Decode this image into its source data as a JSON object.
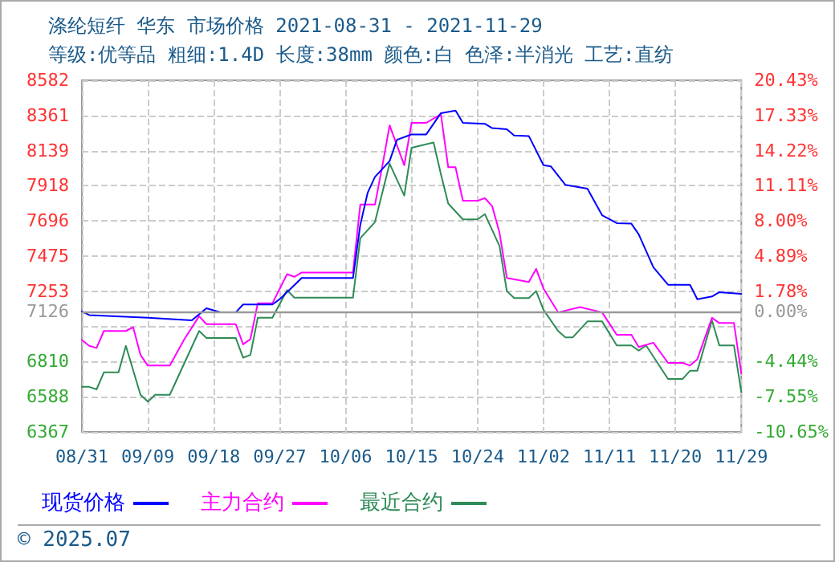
{
  "chart_data": {
    "type": "line",
    "title": "涤纶短纤 华东 市场价格 2021-08-31 - 2021-11-29",
    "subtitle": "等级:优等品 粗细:1.4D 长度:38mm 颜色:白 色泽:半消光 工艺:直纺",
    "annotations": [
      "© 2025.07"
    ],
    "xlim": [
      "2021-08-31",
      "2021-11-29"
    ],
    "xticks": [
      {
        "value": "2021-08-31",
        "label": "08/31"
      },
      {
        "value": "2021-09-09",
        "label": "09/09"
      },
      {
        "value": "2021-09-18",
        "label": "09/18"
      },
      {
        "value": "2021-09-27",
        "label": "09/27"
      },
      {
        "value": "2021-10-06",
        "label": "10/06"
      },
      {
        "value": "2021-10-15",
        "label": "10/15"
      },
      {
        "value": "2021-10-24",
        "label": "10/24"
      },
      {
        "value": "2021-11-02",
        "label": "11/02"
      },
      {
        "value": "2021-11-11",
        "label": "11/11"
      },
      {
        "value": "2021-11-20",
        "label": "11/20"
      },
      {
        "value": "2021-11-29",
        "label": "11/29"
      }
    ],
    "ylim": [
      6367,
      8582
    ],
    "yticks": [
      6367,
      6588,
      6810,
      {
        "value": 7031,
        "label": null
      },
      7126,
      7253,
      7475,
      7696,
      7918,
      8139,
      8361,
      8582
    ],
    "y2lim": [
      -10.65,
      20.43
    ],
    "y2ticks": [
      {
        "value": -10.65,
        "label": "-10.65%"
      },
      {
        "value": -7.55,
        "label": "-7.55%"
      },
      {
        "value": -4.44,
        "label": "-4.44%"
      },
      {
        "value": -1.33,
        "label": null
      },
      {
        "value": 0,
        "label": "0.00%"
      },
      {
        "value": 1.78,
        "label": "1.78%"
      },
      {
        "value": 4.89,
        "label": "4.89%"
      },
      {
        "value": 8,
        "label": "8.00%"
      },
      {
        "value": 11.11,
        "label": "11.11%"
      },
      {
        "value": 14.22,
        "label": "14.22%"
      },
      {
        "value": 17.33,
        "label": "17.33%"
      },
      {
        "value": 20.43,
        "label": "20.43%"
      }
    ],
    "ref_lines": [
      {
        "axis": "y",
        "value": 7126,
        "color": "#999999",
        "line_style": "solid"
      }
    ],
    "grid": true,
    "legend": "bottom",
    "marker": "none",
    "line_style": "solid",
    "series": [
      {
        "name": "现货价格",
        "color": "#0000ff",
        "x": [
          "2021-08-31",
          "2021-09-01",
          "2021-09-09",
          "2021-09-15",
          "2021-09-17",
          "2021-09-19",
          "2021-09-21",
          "2021-09-22",
          "2021-09-26",
          "2021-09-27",
          "2021-09-30",
          "2021-10-07",
          "2021-10-08",
          "2021-10-09",
          "2021-10-10",
          "2021-10-12",
          "2021-10-13",
          "2021-10-15",
          "2021-10-17",
          "2021-10-19",
          "2021-10-21",
          "2021-10-22",
          "2021-10-25",
          "2021-10-26",
          "2021-10-28",
          "2021-10-29",
          "2021-10-31",
          "2021-11-02",
          "2021-11-03",
          "2021-11-05",
          "2021-11-08",
          "2021-11-10",
          "2021-11-12",
          "2021-11-14",
          "2021-11-15",
          "2021-11-17",
          "2021-11-19",
          "2021-11-22",
          "2021-11-23",
          "2021-11-25",
          "2021-11-26",
          "2021-11-29"
        ],
        "values": [
          7126,
          7103,
          7086,
          7070,
          7146,
          7120,
          7120,
          7170,
          7170,
          7203,
          7337,
          7337,
          7672,
          7873,
          7973,
          8073,
          8207,
          8241,
          8241,
          8375,
          8391,
          8314,
          8308,
          8281,
          8274,
          8234,
          8231,
          8047,
          8040,
          7923,
          7899,
          7732,
          7682,
          7679,
          7612,
          7404,
          7294,
          7294,
          7203,
          7220,
          7247,
          7237
        ]
      },
      {
        "name": "主力合约",
        "color": "#ff00ff",
        "x": [
          "2021-08-31",
          "2021-09-01",
          "2021-09-02",
          "2021-09-03",
          "2021-09-06",
          "2021-09-07",
          "2021-09-08",
          "2021-09-09",
          "2021-09-12",
          "2021-09-14",
          "2021-09-16",
          "2021-09-17",
          "2021-09-21",
          "2021-09-22",
          "2021-09-23",
          "2021-09-24",
          "2021-09-26",
          "2021-09-28",
          "2021-09-29",
          "2021-09-30",
          "2021-10-07",
          "2021-10-08",
          "2021-10-10",
          "2021-10-11",
          "2021-10-12",
          "2021-10-14",
          "2021-10-15",
          "2021-10-17",
          "2021-10-19",
          "2021-10-20",
          "2021-10-21",
          "2021-10-22",
          "2021-10-24",
          "2021-10-25",
          "2021-10-26",
          "2021-10-27",
          "2021-10-28",
          "2021-10-31",
          "2021-11-01",
          "2021-11-02",
          "2021-11-04",
          "2021-11-07",
          "2021-11-10",
          "2021-11-12",
          "2021-11-14",
          "2021-11-15",
          "2021-11-17",
          "2021-11-19",
          "2021-11-21",
          "2021-11-22",
          "2021-11-23",
          "2021-11-25",
          "2021-11-26",
          "2021-11-28",
          "2021-11-29"
        ],
        "values": [
          6946,
          6909,
          6896,
          7003,
          7003,
          7026,
          6852,
          6785,
          6785,
          6952,
          7096,
          7046,
          7046,
          6919,
          6952,
          7177,
          7177,
          7361,
          7344,
          7371,
          7371,
          7799,
          7799,
          8040,
          8298,
          8047,
          8314,
          8314,
          8368,
          8034,
          8034,
          7823,
          7823,
          7840,
          7789,
          7622,
          7337,
          7311,
          7394,
          7270,
          7120,
          7153,
          7120,
          6979,
          6979,
          6902,
          6929,
          6802,
          6802,
          6785,
          6825,
          7086,
          7053,
          7053,
          6735
        ]
      },
      {
        "name": "最近合约",
        "color": "#2e8b57",
        "x": [
          "2021-08-31",
          "2021-09-01",
          "2021-09-02",
          "2021-09-03",
          "2021-09-05",
          "2021-09-06",
          "2021-09-08",
          "2021-09-09",
          "2021-09-10",
          "2021-09-12",
          "2021-09-14",
          "2021-09-16",
          "2021-09-17",
          "2021-09-21",
          "2021-09-22",
          "2021-09-23",
          "2021-09-24",
          "2021-09-26",
          "2021-09-28",
          "2021-09-29",
          "2021-10-07",
          "2021-10-08",
          "2021-10-10",
          "2021-10-12",
          "2021-10-14",
          "2021-10-15",
          "2021-10-18",
          "2021-10-19",
          "2021-10-20",
          "2021-10-22",
          "2021-10-24",
          "2021-10-25",
          "2021-10-27",
          "2021-10-28",
          "2021-10-29",
          "2021-10-31",
          "2021-11-01",
          "2021-11-02",
          "2021-11-04",
          "2021-11-05",
          "2021-11-06",
          "2021-11-08",
          "2021-11-10",
          "2021-11-12",
          "2021-11-14",
          "2021-11-15",
          "2021-11-16",
          "2021-11-19",
          "2021-11-21",
          "2021-11-22",
          "2021-11-23",
          "2021-11-25",
          "2021-11-26",
          "2021-11-28",
          "2021-11-29"
        ],
        "values": [
          6651,
          6651,
          6635,
          6742,
          6742,
          6909,
          6601,
          6558,
          6601,
          6601,
          6802,
          7003,
          6959,
          6959,
          6835,
          6852,
          7086,
          7086,
          7260,
          7213,
          7213,
          7588,
          7689,
          8057,
          7856,
          8157,
          8190,
          7990,
          7806,
          7706,
          7706,
          7739,
          7538,
          7254,
          7210,
          7210,
          7254,
          7136,
          7003,
          6963,
          6963,
          7063,
          7063,
          6912,
          6912,
          6879,
          6912,
          6701,
          6701,
          6752,
          6752,
          7070,
          6912,
          6912,
          6618
        ]
      }
    ]
  }
}
